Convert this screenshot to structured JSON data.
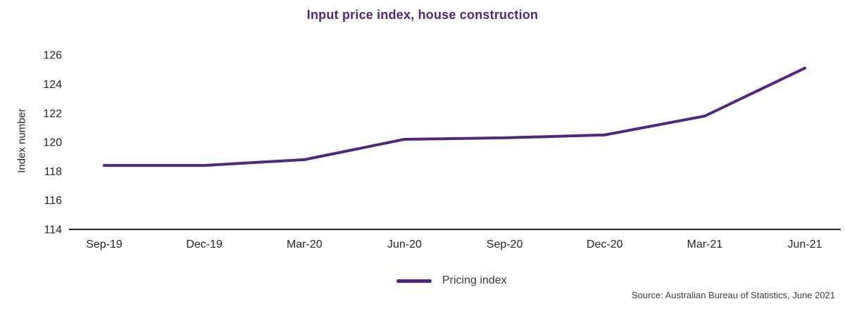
{
  "title": "Input price index, house construction",
  "chart_data": {
    "type": "line",
    "categories": [
      "Sep-19",
      "Dec-19",
      "Mar-20",
      "Jun-20",
      "Sep-20",
      "Dec-20",
      "Mar-21",
      "Jun-21"
    ],
    "series": [
      {
        "name": "Pricing index",
        "values": [
          118.4,
          118.4,
          118.8,
          120.2,
          120.3,
          120.5,
          121.8,
          125.1
        ]
      }
    ],
    "title": "Input price index, house construction",
    "xlabel": "",
    "ylabel": "Index number",
    "yticks": [
      114,
      116,
      118,
      120,
      122,
      124,
      126
    ],
    "ylim": [
      114,
      126.5
    ],
    "grid": false,
    "legend_position": "bottom-center",
    "line_color": "#52257F"
  },
  "legend": {
    "label": "Pricing index"
  },
  "source": "Source: Australian Bureau of Statistics, June 2021",
  "colors": {
    "accent_purple": "#52257F",
    "axis_line": "#262626",
    "tick_text": "#262626",
    "legend_text": "#3A3A3A",
    "source_text": "#404040"
  }
}
